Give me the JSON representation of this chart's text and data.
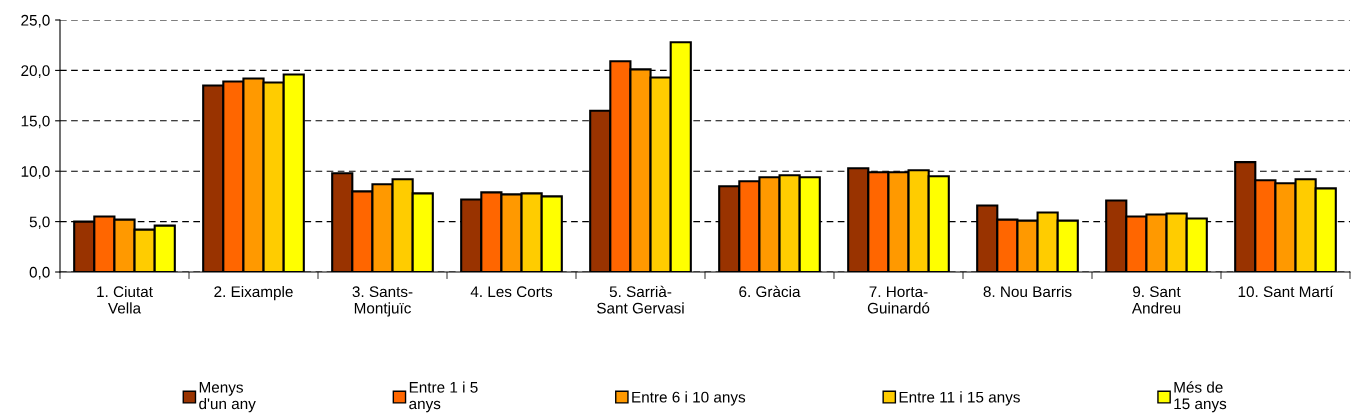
{
  "chart_data": {
    "type": "bar",
    "categories": [
      "1. Ciutat\nVella",
      "2. Eixample",
      "3. Sants-\nMontjuïc",
      "4. Les Corts",
      "5. Sarrià-\nSant Gervasi",
      "6. Gràcia",
      "7. Horta-\nGuinardó",
      "8. Nou Barris",
      "9. Sant\nAndreu",
      "10. Sant Martí"
    ],
    "series": [
      {
        "name": "Menys\nd'un any",
        "color": "#993300",
        "values": [
          5.0,
          18.5,
          9.8,
          7.2,
          16.0,
          8.5,
          10.3,
          6.6,
          7.1,
          10.9
        ]
      },
      {
        "name": "Entre 1 i 5\nanys",
        "color": "#ff6600",
        "values": [
          5.5,
          18.9,
          8.0,
          7.9,
          20.9,
          9.0,
          9.9,
          5.2,
          5.5,
          9.1
        ]
      },
      {
        "name": "Entre 6 i 10 anys",
        "color": "#ff9900",
        "values": [
          5.2,
          19.2,
          8.7,
          7.7,
          20.1,
          9.4,
          9.9,
          5.1,
          5.7,
          8.8
        ]
      },
      {
        "name": "Entre 11 i 15 anys",
        "color": "#ffcc00",
        "values": [
          4.2,
          18.8,
          9.2,
          7.8,
          19.3,
          9.6,
          10.1,
          5.9,
          5.8,
          9.2
        ]
      },
      {
        "name": "Més de\n15 anys",
        "color": "#ffff00",
        "values": [
          4.6,
          19.6,
          7.8,
          7.5,
          22.8,
          9.4,
          9.5,
          5.1,
          5.3,
          8.3
        ]
      }
    ],
    "ylim": [
      0,
      25
    ],
    "yticks": [
      {
        "value": 0,
        "label": "0,0"
      },
      {
        "value": 5,
        "label": "5,0"
      },
      {
        "value": 10,
        "label": "10,0"
      },
      {
        "value": 15,
        "label": "15,0"
      },
      {
        "value": 20,
        "label": "20,0"
      },
      {
        "value": 25,
        "label": "25,0"
      }
    ],
    "grid": "y",
    "line_style": "dashed",
    "legend": "bottom"
  }
}
